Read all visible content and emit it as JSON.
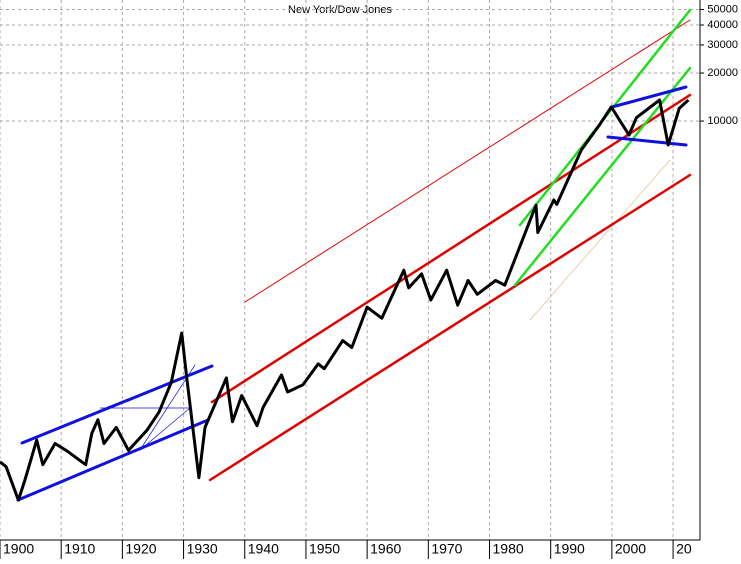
{
  "chart_data": {
    "type": "line",
    "title": "New York/Dow Jones",
    "log_scale": true,
    "grid": true,
    "y_axis_side": "right",
    "xlim": [
      1900,
      2014.4
    ],
    "xticks": [
      1900,
      1910,
      1920,
      1930,
      1940,
      1950,
      1960,
      1970,
      1980,
      1990,
      2000,
      {
        "value": 2010,
        "label": "20"
      }
    ],
    "ylim": [
      23.6,
      57400
    ],
    "yticks": [
      10000,
      20000,
      30000,
      40000,
      50000
    ],
    "x": [
      1900,
      1901,
      1903,
      1904,
      1906,
      1907,
      1909,
      1911,
      1914,
      1915,
      1916,
      1917,
      1919,
      1921,
      1924,
      1926,
      1928,
      1929.7,
      1930.5,
      1932.5,
      1933.5,
      1937,
      1938,
      1939.5,
      1942,
      1943,
      1946,
      1947,
      1949.5,
      1952,
      1953,
      1956,
      1957.5,
      1960,
      1962.4,
      1966,
      1966.8,
      1968.9,
      1970.4,
      1973,
      1974.8,
      1976.5,
      1978,
      1981,
      1982.5,
      1987.6,
      1987.9,
      1990.5,
      1991,
      1995,
      1998,
      1999.9,
      2002.8,
      2004,
      2007.8,
      2009.2,
      2011,
      2012.5
    ],
    "series": [
      {
        "name": "Dow Jones",
        "color": "#000000",
        "values": [
          73,
          68,
          42,
          55,
          100,
          70,
          95,
          85,
          70,
          110,
          134,
          95,
          120,
          86,
          115,
          150,
          230,
          469,
          250,
          58,
          120,
          245,
          130,
          190,
          123,
          160,
          256,
          200,
          222,
          300,
          280,
          420,
          380,
          680,
          580,
          1160,
          900,
          1100,
          755,
          1160,
          700,
          1000,
          820,
          1000,
          935,
          2970,
          2000,
          3200,
          3000,
          6580,
          9500,
          12240,
          8170,
          10500,
          13540,
          7070,
          12000,
          13540
        ]
      }
    ]
  }
}
